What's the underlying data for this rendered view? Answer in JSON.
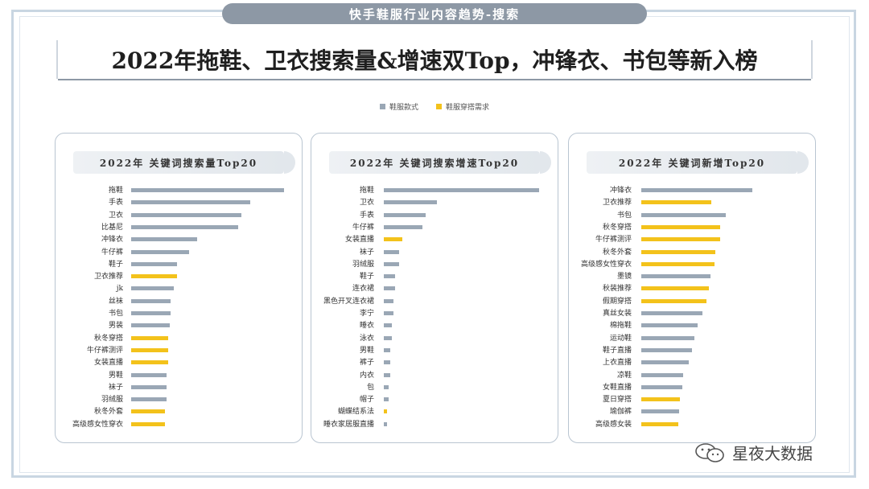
{
  "header": {
    "pill_title": "快手鞋服行业内容趋势-搜索"
  },
  "headline": "2022年拖鞋、卫衣搜索量&增速双Top，冲锋衣、书包等新入榜",
  "legend": [
    {
      "label": "鞋服款式",
      "color": "#9aa7b5"
    },
    {
      "label": "鞋服穿搭需求",
      "color": "#f3c21b"
    }
  ],
  "watermark": {
    "icon": "wechat-icon",
    "text": "星夜大数据"
  },
  "chart_data": [
    {
      "type": "bar",
      "title": "2022年 关键词搜索量Top20",
      "categories": [
        "拖鞋",
        "手表",
        "卫衣",
        "比基尼",
        "冲锋衣",
        "牛仔裤",
        "鞋子",
        "卫衣推荐",
        "jk",
        "丝袜",
        "书包",
        "男装",
        "秋冬穿搭",
        "牛仔裤测评",
        "女装直播",
        "男鞋",
        "袜子",
        "羽绒服",
        "秋冬外套",
        "高级感女性穿衣"
      ],
      "values": [
        100,
        78,
        72,
        70,
        43,
        38,
        30,
        30,
        28,
        26,
        26,
        25,
        24,
        24,
        24,
        23,
        23,
        23,
        22,
        22
      ],
      "groups": [
        "style",
        "style",
        "style",
        "style",
        "style",
        "style",
        "style",
        "demand",
        "style",
        "style",
        "style",
        "style",
        "demand",
        "demand",
        "demand",
        "style",
        "style",
        "style",
        "demand",
        "demand"
      ]
    },
    {
      "type": "bar",
      "title": "2022年 关键词搜索增速Top20",
      "categories": [
        "拖鞋",
        "卫衣",
        "手表",
        "牛仔裤",
        "女装直播",
        "袜子",
        "羽绒服",
        "鞋子",
        "连衣裙",
        "黑色开叉连衣裙",
        "李宁",
        "睡衣",
        "泳衣",
        "男鞋",
        "裤子",
        "内衣",
        "包",
        "帽子",
        "蝴蝶结系法",
        "睡衣家居服直播"
      ],
      "values": [
        100,
        34,
        27,
        25,
        12,
        10,
        10,
        7,
        7,
        6,
        6,
        5,
        5,
        4,
        4,
        4,
        3,
        3,
        2,
        2
      ],
      "groups": [
        "style",
        "style",
        "style",
        "style",
        "demand",
        "style",
        "style",
        "style",
        "style",
        "style",
        "style",
        "style",
        "style",
        "style",
        "style",
        "style",
        "style",
        "style",
        "demand",
        "style"
      ]
    },
    {
      "type": "bar",
      "title": "2022年 关键词新增Top20",
      "categories": [
        "冲锋衣",
        "卫衣推荐",
        "书包",
        "秋冬穿搭",
        "牛仔裤测评",
        "秋冬外套",
        "高级感女性穿衣",
        "墨镜",
        "秋装推荐",
        "假期穿搭",
        "真丝女装",
        "棉拖鞋",
        "运动鞋",
        "鞋子直播",
        "上衣直播",
        "凉鞋",
        "女鞋直播",
        "夏日穿搭",
        "瑜伽裤",
        "高级感女装"
      ],
      "values": [
        100,
        63,
        76,
        71,
        71,
        67,
        66,
        62,
        61,
        59,
        55,
        51,
        48,
        46,
        43,
        38,
        37,
        35,
        34,
        33
      ],
      "groups": [
        "style",
        "demand",
        "style",
        "demand",
        "demand",
        "demand",
        "demand",
        "style",
        "demand",
        "demand",
        "style",
        "style",
        "style",
        "style",
        "style",
        "style",
        "style",
        "demand",
        "style",
        "demand"
      ]
    }
  ]
}
